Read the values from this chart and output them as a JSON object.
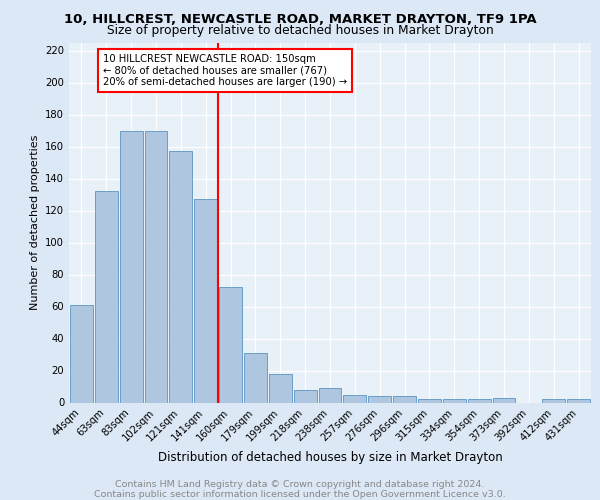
{
  "title1": "10, HILLCREST, NEWCASTLE ROAD, MARKET DRAYTON, TF9 1PA",
  "title2": "Size of property relative to detached houses in Market Drayton",
  "xlabel": "Distribution of detached houses by size in Market Drayton",
  "ylabel": "Number of detached properties",
  "footnote": "Contains HM Land Registry data © Crown copyright and database right 2024.\nContains public sector information licensed under the Open Government Licence v3.0.",
  "categories": [
    "44sqm",
    "63sqm",
    "83sqm",
    "102sqm",
    "121sqm",
    "141sqm",
    "160sqm",
    "179sqm",
    "199sqm",
    "218sqm",
    "238sqm",
    "257sqm",
    "276sqm",
    "296sqm",
    "315sqm",
    "334sqm",
    "354sqm",
    "373sqm",
    "392sqm",
    "412sqm",
    "431sqm"
  ],
  "values": [
    61,
    132,
    170,
    170,
    157,
    127,
    72,
    31,
    18,
    8,
    9,
    5,
    4,
    4,
    2,
    2,
    2,
    3,
    0,
    2,
    2
  ],
  "bar_color": "#aec6e0",
  "bar_edge_color": "#6a9fc8",
  "vline_x": 5.5,
  "vline_color": "red",
  "annotation_text": "10 HILLCREST NEWCASTLE ROAD: 150sqm\n← 80% of detached houses are smaller (767)\n20% of semi-detached houses are larger (190) →",
  "annotation_box_color": "white",
  "annotation_box_edge_color": "red",
  "ylim": [
    0,
    225
  ],
  "yticks": [
    0,
    20,
    40,
    60,
    80,
    100,
    120,
    140,
    160,
    180,
    200,
    220
  ],
  "bg_color": "#dce8f5",
  "plot_bg": "#e8f0f8",
  "title1_fontsize": 9.5,
  "title2_fontsize": 8.8,
  "ylabel_fontsize": 8,
  "xlabel_fontsize": 8.5,
  "tick_fontsize": 7.2,
  "annotation_fontsize": 7.2,
  "footnote_fontsize": 6.8
}
